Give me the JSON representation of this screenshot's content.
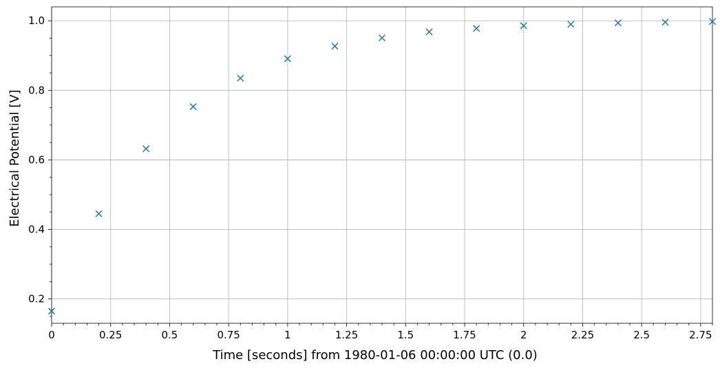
{
  "chart_data": {
    "type": "scatter",
    "title": "",
    "xlabel": "Time [seconds] from 1980-01-06 00:00:00 UTC (0.0)",
    "ylabel": "Electrical Potential [V]",
    "xlim": [
      0,
      2.8
    ],
    "ylim": [
      0.13,
      1.04
    ],
    "x_ticks": [
      0,
      0.25,
      0.5,
      0.75,
      1,
      1.25,
      1.5,
      1.75,
      2,
      2.25,
      2.5,
      2.75
    ],
    "x_tick_labels": [
      "0",
      "0.25",
      "0.5",
      "0.75",
      "1",
      "1.25",
      "1.5",
      "1.75",
      "2",
      "2.25",
      "2.5",
      "2.75"
    ],
    "y_ticks": [
      0.2,
      0.4,
      0.6,
      0.8,
      1.0
    ],
    "y_tick_labels": [
      "0.2",
      "0.4",
      "0.6",
      "0.8",
      "1.0"
    ],
    "grid": true,
    "marker": "x",
    "color": "#1f77b4",
    "series": [
      {
        "x": [
          0,
          0.2,
          0.4,
          0.6,
          0.8,
          1.0,
          1.2,
          1.4,
          1.6,
          1.8,
          2.0,
          2.2,
          2.4,
          2.6,
          2.8
        ],
        "y": [
          0.165,
          0.445,
          0.632,
          0.753,
          0.835,
          0.891,
          0.927,
          0.951,
          0.968,
          0.978,
          0.986,
          0.99,
          0.994,
          0.996,
          0.998
        ]
      }
    ]
  }
}
